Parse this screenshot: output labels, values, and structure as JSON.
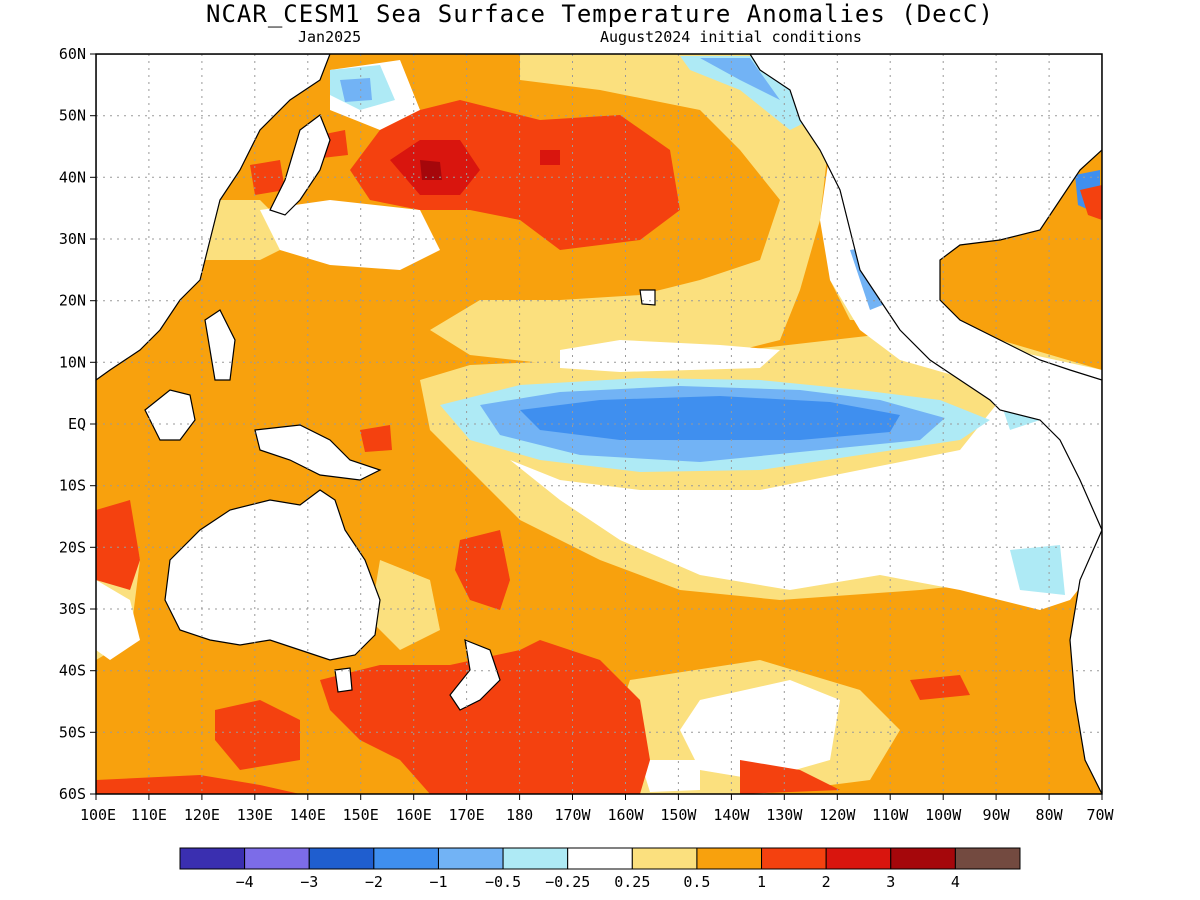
{
  "title": "NCAR_CESM1 Sea Surface Temperature Anomalies (DecC)",
  "subtitle_left": "Jan2025",
  "subtitle_right": "August2024 initial conditions",
  "lat_labels": [
    "60N",
    "50N",
    "40N",
    "30N",
    "20N",
    "10N",
    "EQ",
    "10S",
    "20S",
    "30S",
    "40S",
    "50S",
    "60S"
  ],
  "lon_labels": [
    "100E",
    "110E",
    "120E",
    "130E",
    "140E",
    "150E",
    "160E",
    "170E",
    "180",
    "170W",
    "160W",
    "150W",
    "140W",
    "130W",
    "120W",
    "110W",
    "100W",
    "90W",
    "80W",
    "70W"
  ],
  "colorbar": {
    "colors": [
      "#3a2fb0",
      "#7c6ce8",
      "#1f5ecf",
      "#3f8fef",
      "#72b3f5",
      "#aeeaf5",
      "#ffffff",
      "#fbe07e",
      "#f8a10d",
      "#f4410f",
      "#d9150e",
      "#a5070b",
      "#734a40"
    ],
    "labels": [
      "−4",
      "−3",
      "−2",
      "−1",
      "−0.5",
      "−0.25",
      "0.25",
      "0.5",
      "1",
      "2",
      "3",
      "4"
    ]
  },
  "colors": {
    "land": "#ffffff",
    "coast": "#000000",
    "grid": "#9a9a9a",
    "cat_0p25_0p5": "#fbe07e",
    "cat_0p5_1": "#f8a10d",
    "cat_1_2": "#f4410f",
    "cat_2_3": "#d9150e",
    "cat_3_4": "#a5070b",
    "cat_m0p25_m0p5": "#aeeaf5",
    "cat_m0p5_m1": "#72b3f5",
    "cat_m1_m2": "#3f8fef",
    "cat_m2_m3": "#1f5ecf"
  }
}
